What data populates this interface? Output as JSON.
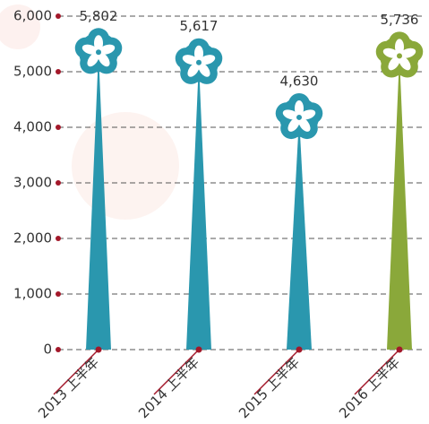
{
  "chart_data": {
    "type": "bar",
    "categories": [
      "2013 上半年",
      "2014 上半年",
      "2015 上半年",
      "2016 上半年"
    ],
    "values": [
      5802,
      5617,
      4630,
      5736
    ],
    "value_labels": [
      "5,802",
      "5,617",
      "4,630",
      "5,736"
    ],
    "colors": [
      "#2a97ae",
      "#2a97ae",
      "#2a97ae",
      "#8aa83a"
    ],
    "ylim": [
      0,
      6000
    ],
    "yticks": [
      0,
      {
        "value": 1000,
        "label": "1,000"
      },
      {
        "value": 2000,
        "label": "2,000"
      },
      {
        "value": 3000,
        "label": "3,000"
      },
      {
        "value": 4000,
        "label": "4,000"
      },
      {
        "value": 5000,
        "label": "5,000"
      },
      {
        "value": 6000,
        "label": "6,000"
      }
    ],
    "grid": true
  }
}
